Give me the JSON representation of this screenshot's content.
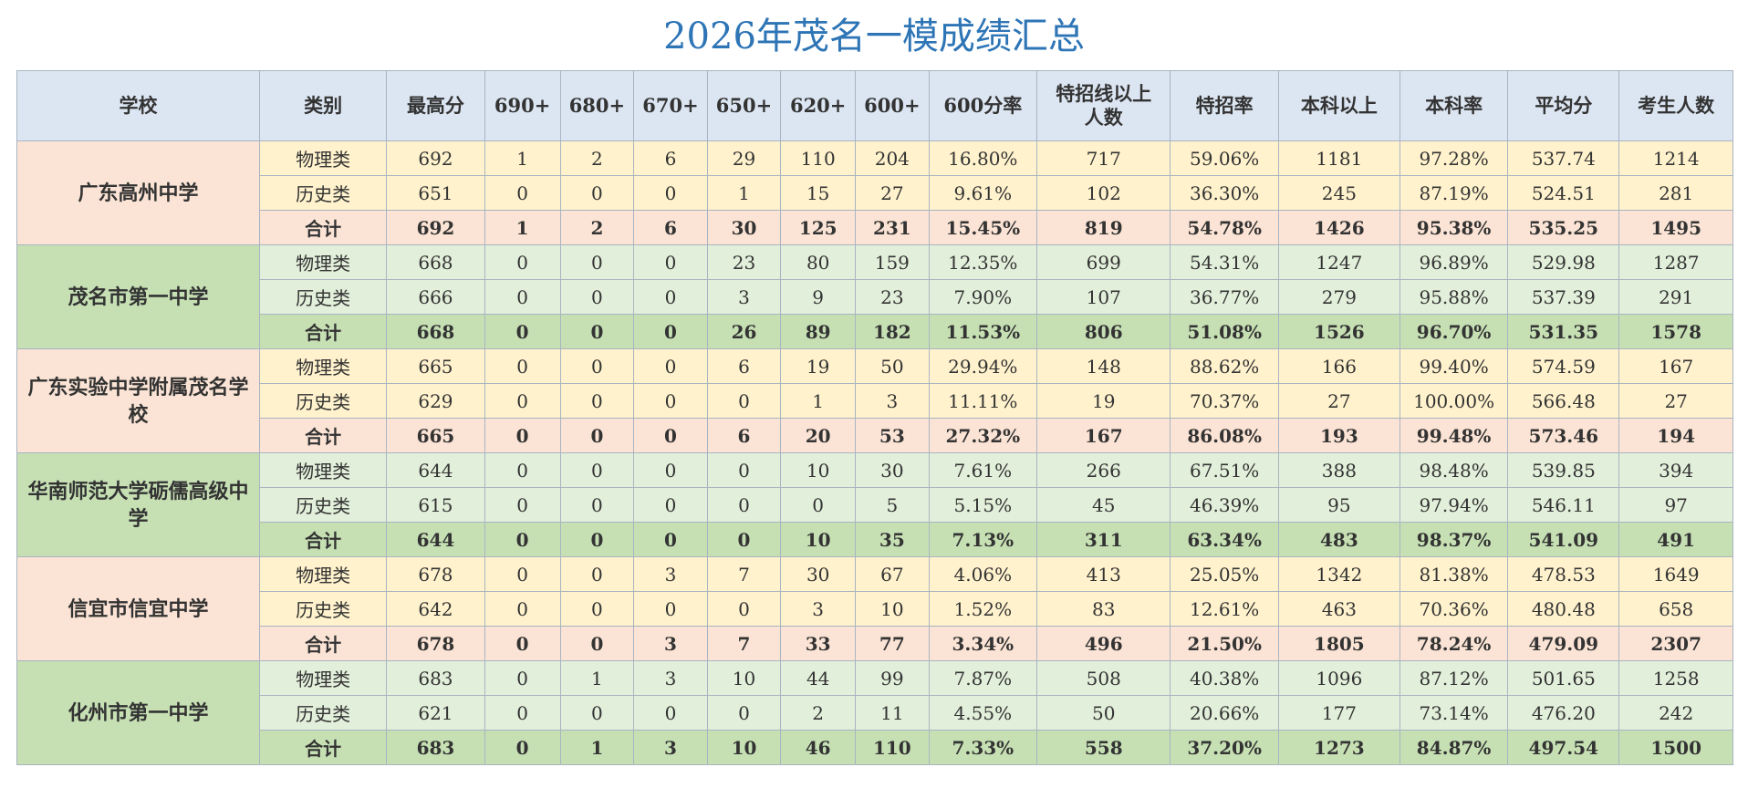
{
  "title": "2026年茂名一模成绩汇总",
  "table": {
    "headers": [
      "学校",
      "类别",
      "最高分",
      "690+",
      "680+",
      "670+",
      "650+",
      "620+",
      "600+",
      "600分率",
      "特招线以上\n人数",
      "特招率",
      "本科以上",
      "本科率",
      "平均分",
      "考生人数"
    ],
    "groups": [
      {
        "school": "广东高州中学",
        "rows": [
          [
            "物理类",
            "692",
            "1",
            "2",
            "6",
            "29",
            "110",
            "204",
            "16.80%",
            "717",
            "59.06%",
            "1181",
            "97.28%",
            "537.74",
            "1214"
          ],
          [
            "历史类",
            "651",
            "0",
            "0",
            "0",
            "1",
            "15",
            "27",
            "9.61%",
            "102",
            "36.30%",
            "245",
            "87.19%",
            "524.51",
            "281"
          ],
          [
            "合计",
            "692",
            "1",
            "2",
            "6",
            "30",
            "125",
            "231",
            "15.45%",
            "819",
            "54.78%",
            "1426",
            "95.38%",
            "535.25",
            "1495"
          ]
        ]
      },
      {
        "school": "茂名市第一中学",
        "rows": [
          [
            "物理类",
            "668",
            "0",
            "0",
            "0",
            "23",
            "80",
            "159",
            "12.35%",
            "699",
            "54.31%",
            "1247",
            "96.89%",
            "529.98",
            "1287"
          ],
          [
            "历史类",
            "666",
            "0",
            "0",
            "0",
            "3",
            "9",
            "23",
            "7.90%",
            "107",
            "36.77%",
            "279",
            "95.88%",
            "537.39",
            "291"
          ],
          [
            "合计",
            "668",
            "0",
            "0",
            "0",
            "26",
            "89",
            "182",
            "11.53%",
            "806",
            "51.08%",
            "1526",
            "96.70%",
            "531.35",
            "1578"
          ]
        ]
      },
      {
        "school": "广东实验中学附属茂名学校",
        "rows": [
          [
            "物理类",
            "665",
            "0",
            "0",
            "0",
            "6",
            "19",
            "50",
            "29.94%",
            "148",
            "88.62%",
            "166",
            "99.40%",
            "574.59",
            "167"
          ],
          [
            "历史类",
            "629",
            "0",
            "0",
            "0",
            "0",
            "1",
            "3",
            "11.11%",
            "19",
            "70.37%",
            "27",
            "100.00%",
            "566.48",
            "27"
          ],
          [
            "合计",
            "665",
            "0",
            "0",
            "0",
            "6",
            "20",
            "53",
            "27.32%",
            "167",
            "86.08%",
            "193",
            "99.48%",
            "573.46",
            "194"
          ]
        ]
      },
      {
        "school": "华南师范大学砺儒高级中学",
        "rows": [
          [
            "物理类",
            "644",
            "0",
            "0",
            "0",
            "0",
            "10",
            "30",
            "7.61%",
            "266",
            "67.51%",
            "388",
            "98.48%",
            "539.85",
            "394"
          ],
          [
            "历史类",
            "615",
            "0",
            "0",
            "0",
            "0",
            "0",
            "5",
            "5.15%",
            "45",
            "46.39%",
            "95",
            "97.94%",
            "546.11",
            "97"
          ],
          [
            "合计",
            "644",
            "0",
            "0",
            "0",
            "0",
            "10",
            "35",
            "7.13%",
            "311",
            "63.34%",
            "483",
            "98.37%",
            "541.09",
            "491"
          ]
        ]
      },
      {
        "school": "信宜市信宜中学",
        "rows": [
          [
            "物理类",
            "678",
            "0",
            "0",
            "3",
            "7",
            "30",
            "67",
            "4.06%",
            "413",
            "25.05%",
            "1342",
            "81.38%",
            "478.53",
            "1649"
          ],
          [
            "历史类",
            "642",
            "0",
            "0",
            "0",
            "0",
            "3",
            "10",
            "1.52%",
            "83",
            "12.61%",
            "463",
            "70.36%",
            "480.48",
            "658"
          ],
          [
            "合计",
            "678",
            "0",
            "0",
            "3",
            "7",
            "33",
            "77",
            "3.34%",
            "496",
            "21.50%",
            "1805",
            "78.24%",
            "479.09",
            "2307"
          ]
        ]
      },
      {
        "school": "化州市第一中学",
        "rows": [
          [
            "物理类",
            "683",
            "0",
            "1",
            "3",
            "10",
            "44",
            "99",
            "7.87%",
            "508",
            "40.38%",
            "1096",
            "87.12%",
            "501.65",
            "1258"
          ],
          [
            "历史类",
            "621",
            "0",
            "0",
            "0",
            "0",
            "2",
            "11",
            "4.55%",
            "50",
            "20.66%",
            "177",
            "73.14%",
            "476.20",
            "242"
          ],
          [
            "合计",
            "683",
            "0",
            "1",
            "3",
            "10",
            "46",
            "110",
            "7.33%",
            "558",
            "37.20%",
            "1273",
            "84.87%",
            "497.54",
            "1500"
          ]
        ]
      }
    ]
  }
}
